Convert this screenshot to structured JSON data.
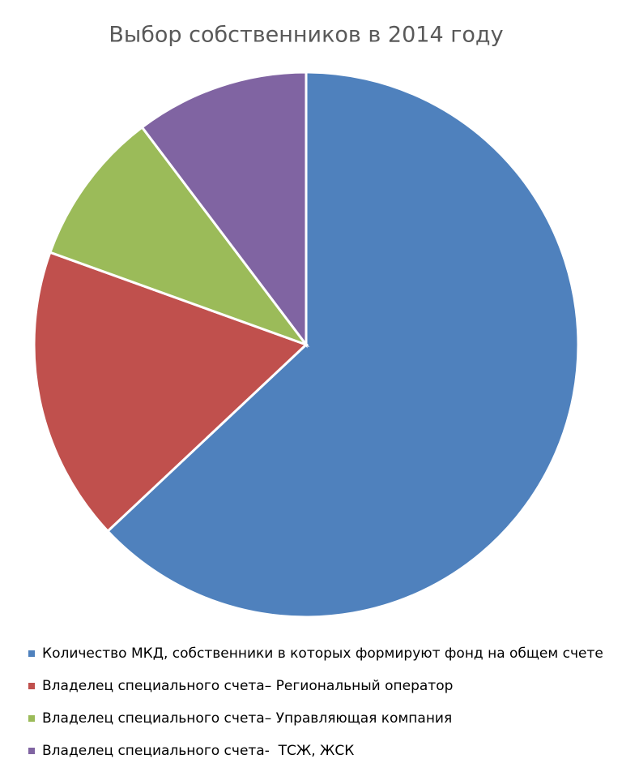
{
  "chart_data": {
    "type": "pie",
    "title": "Выбор собственников в 2014 году",
    "categories": [
      "Количество МКД, собственники в которых формируют фонд на общем счете",
      "Владелец специального счета– Региональный оператор",
      "Владелец специального счета– Управляющая компания",
      "Владелец специального счета-  ТСЖ, ЖСК"
    ],
    "values": [
      63,
      17.5,
      9.2,
      10.3
    ],
    "colors": [
      "#4f81bd",
      "#c0504d",
      "#9bbb59",
      "#8064a2"
    ],
    "legend": "bottom"
  }
}
